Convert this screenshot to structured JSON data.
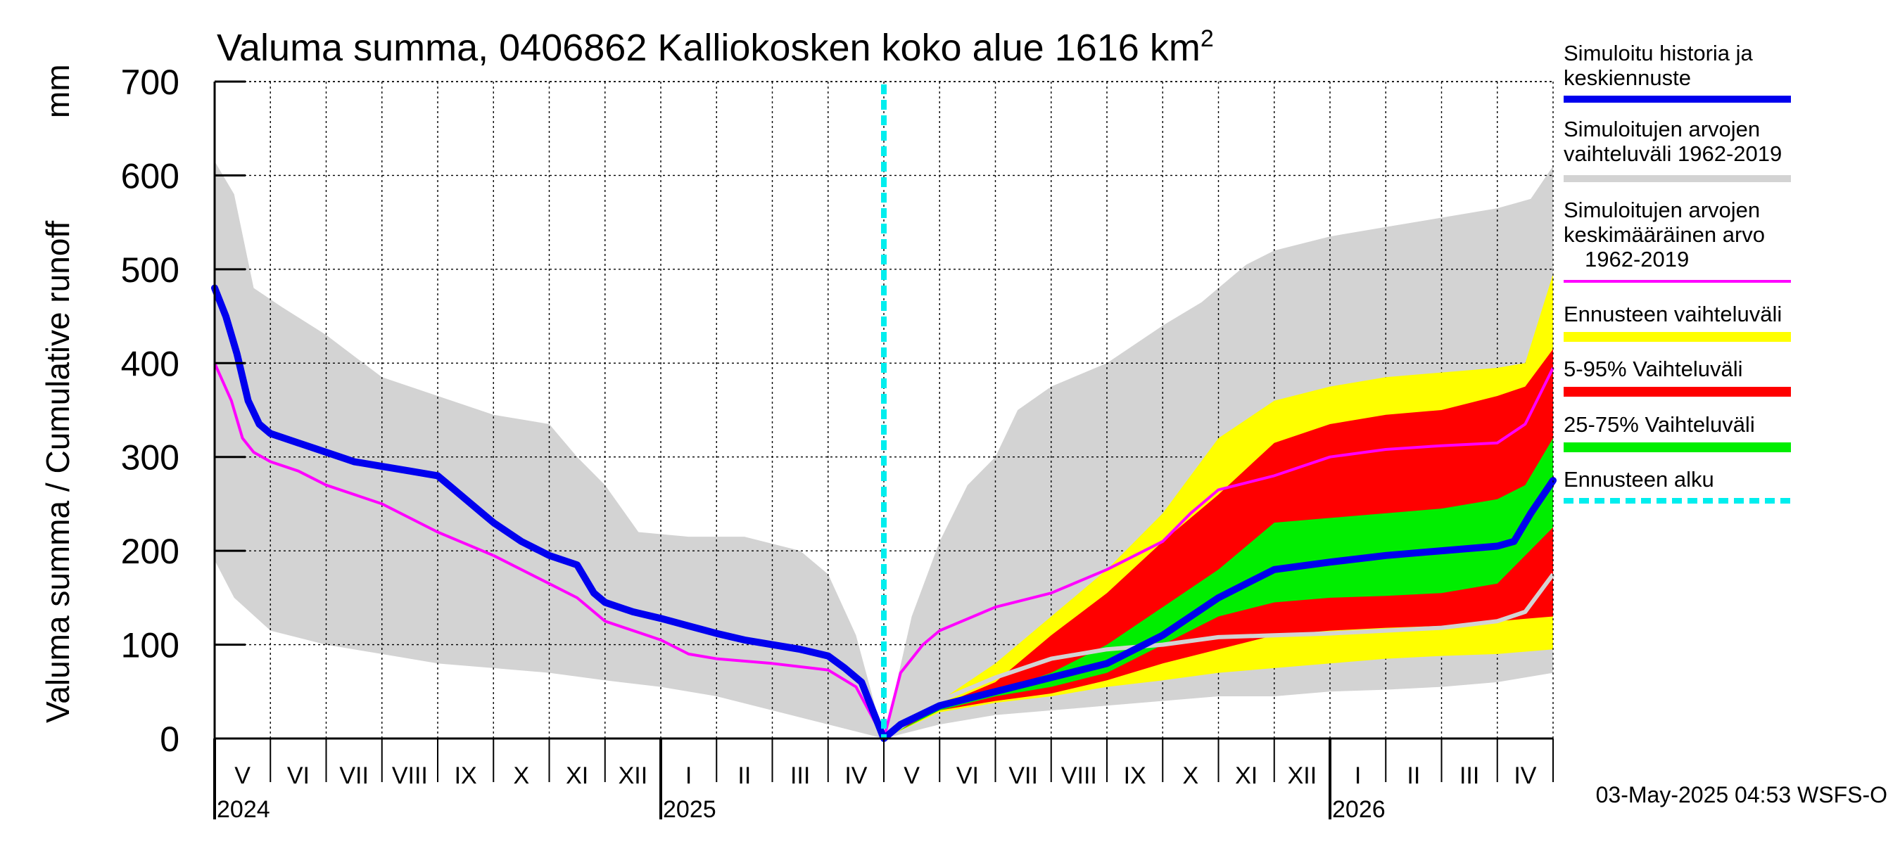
{
  "title_main": "Valuma summa, 0406862 Kalliokosken koko alue 1616 km",
  "title_sup": "2",
  "ylabel_left": "Valuma summa / Cumulative runoff",
  "ylabel_unit": "mm",
  "timestamp": "03-May-2025 04:53 WSFS-O",
  "chart_data": {
    "type": "area",
    "title": "Valuma summa, 0406862 Kalliokosken koko alue 1616 km²",
    "ylabel": "Valuma summa / Cumulative runoff mm",
    "ylim": [
      0,
      700
    ],
    "yticks": [
      0,
      100,
      200,
      300,
      400,
      500,
      600,
      700
    ],
    "xlim_months": [
      0,
      24
    ],
    "months": [
      "V",
      "VI",
      "VII",
      "VIII",
      "IX",
      "X",
      "XI",
      "XII",
      "I",
      "II",
      "III",
      "IV",
      "V",
      "VI",
      "VII",
      "VIII",
      "IX",
      "X",
      "XI",
      "XII",
      "I",
      "II",
      "III",
      "IV"
    ],
    "years": [
      {
        "label": "2024",
        "month": 0
      },
      {
        "label": "2025",
        "month": 8
      },
      {
        "label": "2026",
        "month": 20
      }
    ],
    "forecast_start_month": 12,
    "series": [
      {
        "name": "hist_range_upper",
        "color": "#d3d3d3",
        "points": [
          [
            0,
            615
          ],
          [
            0.35,
            580
          ],
          [
            0.7,
            480
          ],
          [
            1.2,
            460
          ],
          [
            2,
            430
          ],
          [
            3,
            385
          ],
          [
            4,
            365
          ],
          [
            5,
            345
          ],
          [
            6,
            335
          ],
          [
            6.5,
            300
          ],
          [
            7,
            270
          ],
          [
            7.6,
            220
          ],
          [
            8.5,
            215
          ],
          [
            9.5,
            215
          ],
          [
            10.5,
            200
          ],
          [
            11,
            175
          ],
          [
            11.5,
            110
          ],
          [
            12,
            0
          ],
          [
            12.5,
            130
          ],
          [
            13,
            210
          ],
          [
            13.5,
            270
          ],
          [
            14,
            300
          ],
          [
            14.4,
            350
          ],
          [
            15,
            375
          ],
          [
            16,
            400
          ],
          [
            17,
            440
          ],
          [
            17.7,
            465
          ],
          [
            18,
            480
          ],
          [
            18.5,
            505
          ],
          [
            19,
            520
          ],
          [
            20,
            535
          ],
          [
            21,
            545
          ],
          [
            22,
            555
          ],
          [
            23,
            565
          ],
          [
            23.6,
            575
          ],
          [
            24,
            610
          ]
        ]
      },
      {
        "name": "hist_range_lower",
        "color": "#d3d3d3",
        "points": [
          [
            0,
            190
          ],
          [
            0.35,
            150
          ],
          [
            1,
            115
          ],
          [
            2,
            100
          ],
          [
            3,
            90
          ],
          [
            4,
            80
          ],
          [
            5,
            75
          ],
          [
            6,
            70
          ],
          [
            7,
            62
          ],
          [
            8,
            55
          ],
          [
            9,
            45
          ],
          [
            10,
            30
          ],
          [
            11,
            15
          ],
          [
            12,
            0
          ],
          [
            13,
            15
          ],
          [
            14,
            25
          ],
          [
            15,
            30
          ],
          [
            16,
            35
          ],
          [
            17,
            40
          ],
          [
            18,
            45
          ],
          [
            19,
            45
          ],
          [
            20,
            50
          ],
          [
            21,
            52
          ],
          [
            22,
            55
          ],
          [
            23,
            60
          ],
          [
            24,
            70
          ]
        ]
      },
      {
        "name": "forecast_range_upper",
        "color": "#ffff00",
        "points": [
          [
            12,
            0
          ],
          [
            13,
            40
          ],
          [
            14,
            80
          ],
          [
            15,
            130
          ],
          [
            16,
            180
          ],
          [
            17,
            240
          ],
          [
            18,
            320
          ],
          [
            19,
            360
          ],
          [
            20,
            375
          ],
          [
            21,
            385
          ],
          [
            22,
            390
          ],
          [
            23,
            395
          ],
          [
            23.5,
            400
          ],
          [
            24,
            495
          ]
        ]
      },
      {
        "name": "forecast_range_lower",
        "color": "#ffff00",
        "points": [
          [
            12,
            0
          ],
          [
            13,
            28
          ],
          [
            14,
            38
          ],
          [
            15,
            45
          ],
          [
            16,
            55
          ],
          [
            17,
            62
          ],
          [
            18,
            70
          ],
          [
            19,
            75
          ],
          [
            20,
            80
          ],
          [
            21,
            85
          ],
          [
            22,
            88
          ],
          [
            23,
            90
          ],
          [
            24,
            95
          ]
        ]
      },
      {
        "name": "p95",
        "color": "#ff0000",
        "points": [
          [
            12,
            0
          ],
          [
            13,
            35
          ],
          [
            14,
            60
          ],
          [
            15,
            110
          ],
          [
            16,
            155
          ],
          [
            17,
            210
          ],
          [
            18,
            260
          ],
          [
            19,
            315
          ],
          [
            20,
            335
          ],
          [
            21,
            345
          ],
          [
            22,
            350
          ],
          [
            23,
            365
          ],
          [
            23.5,
            375
          ],
          [
            24,
            415
          ]
        ]
      },
      {
        "name": "p5",
        "color": "#ff0000",
        "points": [
          [
            12,
            0
          ],
          [
            13,
            30
          ],
          [
            14,
            40
          ],
          [
            15,
            48
          ],
          [
            16,
            62
          ],
          [
            17,
            80
          ],
          [
            18,
            95
          ],
          [
            19,
            110
          ],
          [
            20,
            115
          ],
          [
            21,
            118
          ],
          [
            22,
            120
          ],
          [
            23,
            125
          ],
          [
            24,
            130
          ]
        ]
      },
      {
        "name": "p75",
        "color": "#00ee00",
        "points": [
          [
            12,
            0
          ],
          [
            13,
            32
          ],
          [
            14,
            50
          ],
          [
            15,
            70
          ],
          [
            16,
            100
          ],
          [
            17,
            140
          ],
          [
            18,
            180
          ],
          [
            19,
            230
          ],
          [
            20,
            235
          ],
          [
            21,
            240
          ],
          [
            22,
            245
          ],
          [
            23,
            255
          ],
          [
            23.5,
            270
          ],
          [
            24,
            320
          ]
        ]
      },
      {
        "name": "p25",
        "color": "#00ee00",
        "points": [
          [
            12,
            0
          ],
          [
            13,
            30
          ],
          [
            14,
            45
          ],
          [
            15,
            55
          ],
          [
            16,
            70
          ],
          [
            17,
            100
          ],
          [
            18,
            130
          ],
          [
            19,
            145
          ],
          [
            20,
            150
          ],
          [
            21,
            152
          ],
          [
            22,
            155
          ],
          [
            23,
            165
          ],
          [
            24,
            225
          ]
        ]
      },
      {
        "name": "Simuloitujen arvojen keskimääräinen arvo 1962-2019",
        "color": "#ff00ff",
        "points": [
          [
            0,
            400
          ],
          [
            0.3,
            360
          ],
          [
            0.5,
            320
          ],
          [
            0.7,
            305
          ],
          [
            1,
            295
          ],
          [
            1.5,
            285
          ],
          [
            2,
            270
          ],
          [
            3,
            250
          ],
          [
            4,
            220
          ],
          [
            5,
            195
          ],
          [
            6,
            165
          ],
          [
            6.5,
            150
          ],
          [
            7,
            125
          ],
          [
            8,
            105
          ],
          [
            8.5,
            90
          ],
          [
            9,
            85
          ],
          [
            10,
            80
          ],
          [
            11,
            73
          ],
          [
            11.5,
            55
          ],
          [
            12,
            0
          ],
          [
            12.3,
            70
          ],
          [
            12.7,
            100
          ],
          [
            13,
            115
          ],
          [
            14,
            140
          ],
          [
            15,
            155
          ],
          [
            16,
            180
          ],
          [
            17,
            210
          ],
          [
            17.5,
            240
          ],
          [
            18,
            265
          ],
          [
            19,
            280
          ],
          [
            20,
            300
          ],
          [
            21,
            308
          ],
          [
            22,
            312
          ],
          [
            23,
            315
          ],
          [
            23.5,
            335
          ],
          [
            24,
            395
          ]
        ]
      },
      {
        "name": "forecast_median",
        "color": "#d3d3d3",
        "points": [
          [
            12,
            0
          ],
          [
            13,
            40
          ],
          [
            14,
            65
          ],
          [
            15,
            85
          ],
          [
            16,
            95
          ],
          [
            17,
            100
          ],
          [
            18,
            108
          ],
          [
            19,
            110
          ],
          [
            20,
            112
          ],
          [
            21,
            115
          ],
          [
            22,
            118
          ],
          [
            23,
            125
          ],
          [
            23.5,
            135
          ],
          [
            24,
            175
          ]
        ]
      },
      {
        "name": "Simuloitu historia ja keskiennuste",
        "color": "#0000ee",
        "points": [
          [
            0,
            480
          ],
          [
            0.2,
            450
          ],
          [
            0.4,
            410
          ],
          [
            0.6,
            360
          ],
          [
            0.8,
            335
          ],
          [
            1,
            325
          ],
          [
            1.5,
            315
          ],
          [
            2,
            305
          ],
          [
            2.5,
            295
          ],
          [
            3,
            290
          ],
          [
            3.5,
            285
          ],
          [
            4,
            280
          ],
          [
            4.4,
            260
          ],
          [
            4.8,
            240
          ],
          [
            5,
            230
          ],
          [
            5.5,
            210
          ],
          [
            6,
            195
          ],
          [
            6.5,
            185
          ],
          [
            6.8,
            155
          ],
          [
            7,
            145
          ],
          [
            7.5,
            135
          ],
          [
            8,
            128
          ],
          [
            8.5,
            120
          ],
          [
            9,
            112
          ],
          [
            9.5,
            105
          ],
          [
            10,
            100
          ],
          [
            10.5,
            95
          ],
          [
            11,
            88
          ],
          [
            11.3,
            75
          ],
          [
            11.6,
            60
          ],
          [
            12,
            0
          ],
          [
            12.3,
            15
          ],
          [
            13,
            35
          ],
          [
            14,
            50
          ],
          [
            15,
            65
          ],
          [
            16,
            80
          ],
          [
            17,
            110
          ],
          [
            17.5,
            130
          ],
          [
            18,
            150
          ],
          [
            18.5,
            165
          ],
          [
            19,
            180
          ],
          [
            20,
            188
          ],
          [
            21,
            195
          ],
          [
            22,
            200
          ],
          [
            23,
            205
          ],
          [
            23.3,
            210
          ],
          [
            23.6,
            240
          ],
          [
            24,
            275
          ]
        ]
      }
    ],
    "legend": [
      {
        "label": "Simuloitu historia ja keskiennuste",
        "color": "#0000ee",
        "style": "line"
      },
      {
        "label": "Simuloitujen arvojen vaihteluväli 1962-2019",
        "color": "#d3d3d3",
        "style": "line"
      },
      {
        "label": "Simuloitujen arvojen keskimääräinen arvo 1962-2019",
        "color": "#ff00ff",
        "style": "thin"
      },
      {
        "label": "Ennusteen vaihteluväli",
        "color": "#ffff00",
        "style": "band"
      },
      {
        "label": "5-95% Vaihteluväli",
        "color": "#ff0000",
        "style": "band"
      },
      {
        "label": "25-75% Vaihteluväli",
        "color": "#00ee00",
        "style": "band"
      },
      {
        "label": "Ennusteen alku",
        "color": "#00eeee",
        "style": "dashed"
      }
    ]
  },
  "legend_text": {
    "l0": [
      "Simuloitu historia ja",
      "keskiennuste"
    ],
    "l1": [
      "Simuloitujen arvojen",
      "vaihteluväli 1962-2019"
    ],
    "l2": [
      "Simuloitujen arvojen",
      "keskimääräinen arvo",
      "1962-2019"
    ],
    "l3": [
      "Ennusteen vaihteluväli"
    ],
    "l4": [
      "5-95% Vaihteluväli"
    ],
    "l5": [
      "25-75% Vaihteluväli"
    ],
    "l6": [
      "Ennusteen alku"
    ]
  }
}
